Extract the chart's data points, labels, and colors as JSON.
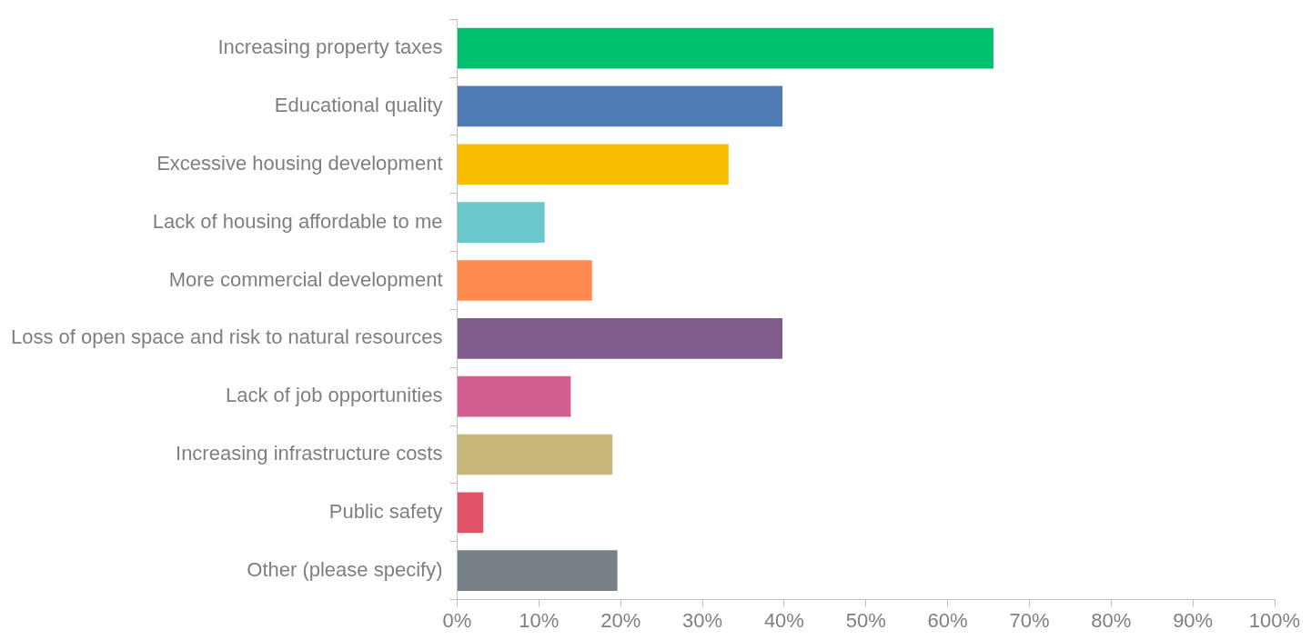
{
  "chart_data": {
    "type": "bar",
    "orientation": "horizontal",
    "categories": [
      "Increasing property taxes",
      "Educational quality",
      "Excessive housing development",
      "Lack of housing affordable to me",
      "More commercial development",
      "Loss of open space and risk to natural resources",
      "Lack of job opportunities",
      "Increasing infrastructure costs",
      "Public safety",
      "Other (please specify)"
    ],
    "values": [
      65.6,
      39.8,
      33.2,
      10.7,
      16.5,
      39.8,
      13.9,
      19.0,
      3.2,
      19.6
    ],
    "colors": [
      "#00bf6f",
      "#507cb6",
      "#f9be00",
      "#6bc8cd",
      "#ff8b4f",
      "#7f5e8e",
      "#d25f90",
      "#c7b879",
      "#e05366",
      "#768086"
    ],
    "xlim": [
      0,
      100
    ],
    "xticks": [
      {
        "value": 0,
        "label": "0%"
      },
      {
        "value": 10,
        "label": "10%"
      },
      {
        "value": 20,
        "label": "20%"
      },
      {
        "value": 30,
        "label": "30%"
      },
      {
        "value": 40,
        "label": "40%"
      },
      {
        "value": 50,
        "label": "50%"
      },
      {
        "value": 60,
        "label": "60%"
      },
      {
        "value": 70,
        "label": "70%"
      },
      {
        "value": 80,
        "label": "80%"
      },
      {
        "value": 90,
        "label": "90%"
      },
      {
        "value": 100,
        "label": "100%"
      }
    ],
    "grid": false,
    "legend": false
  }
}
